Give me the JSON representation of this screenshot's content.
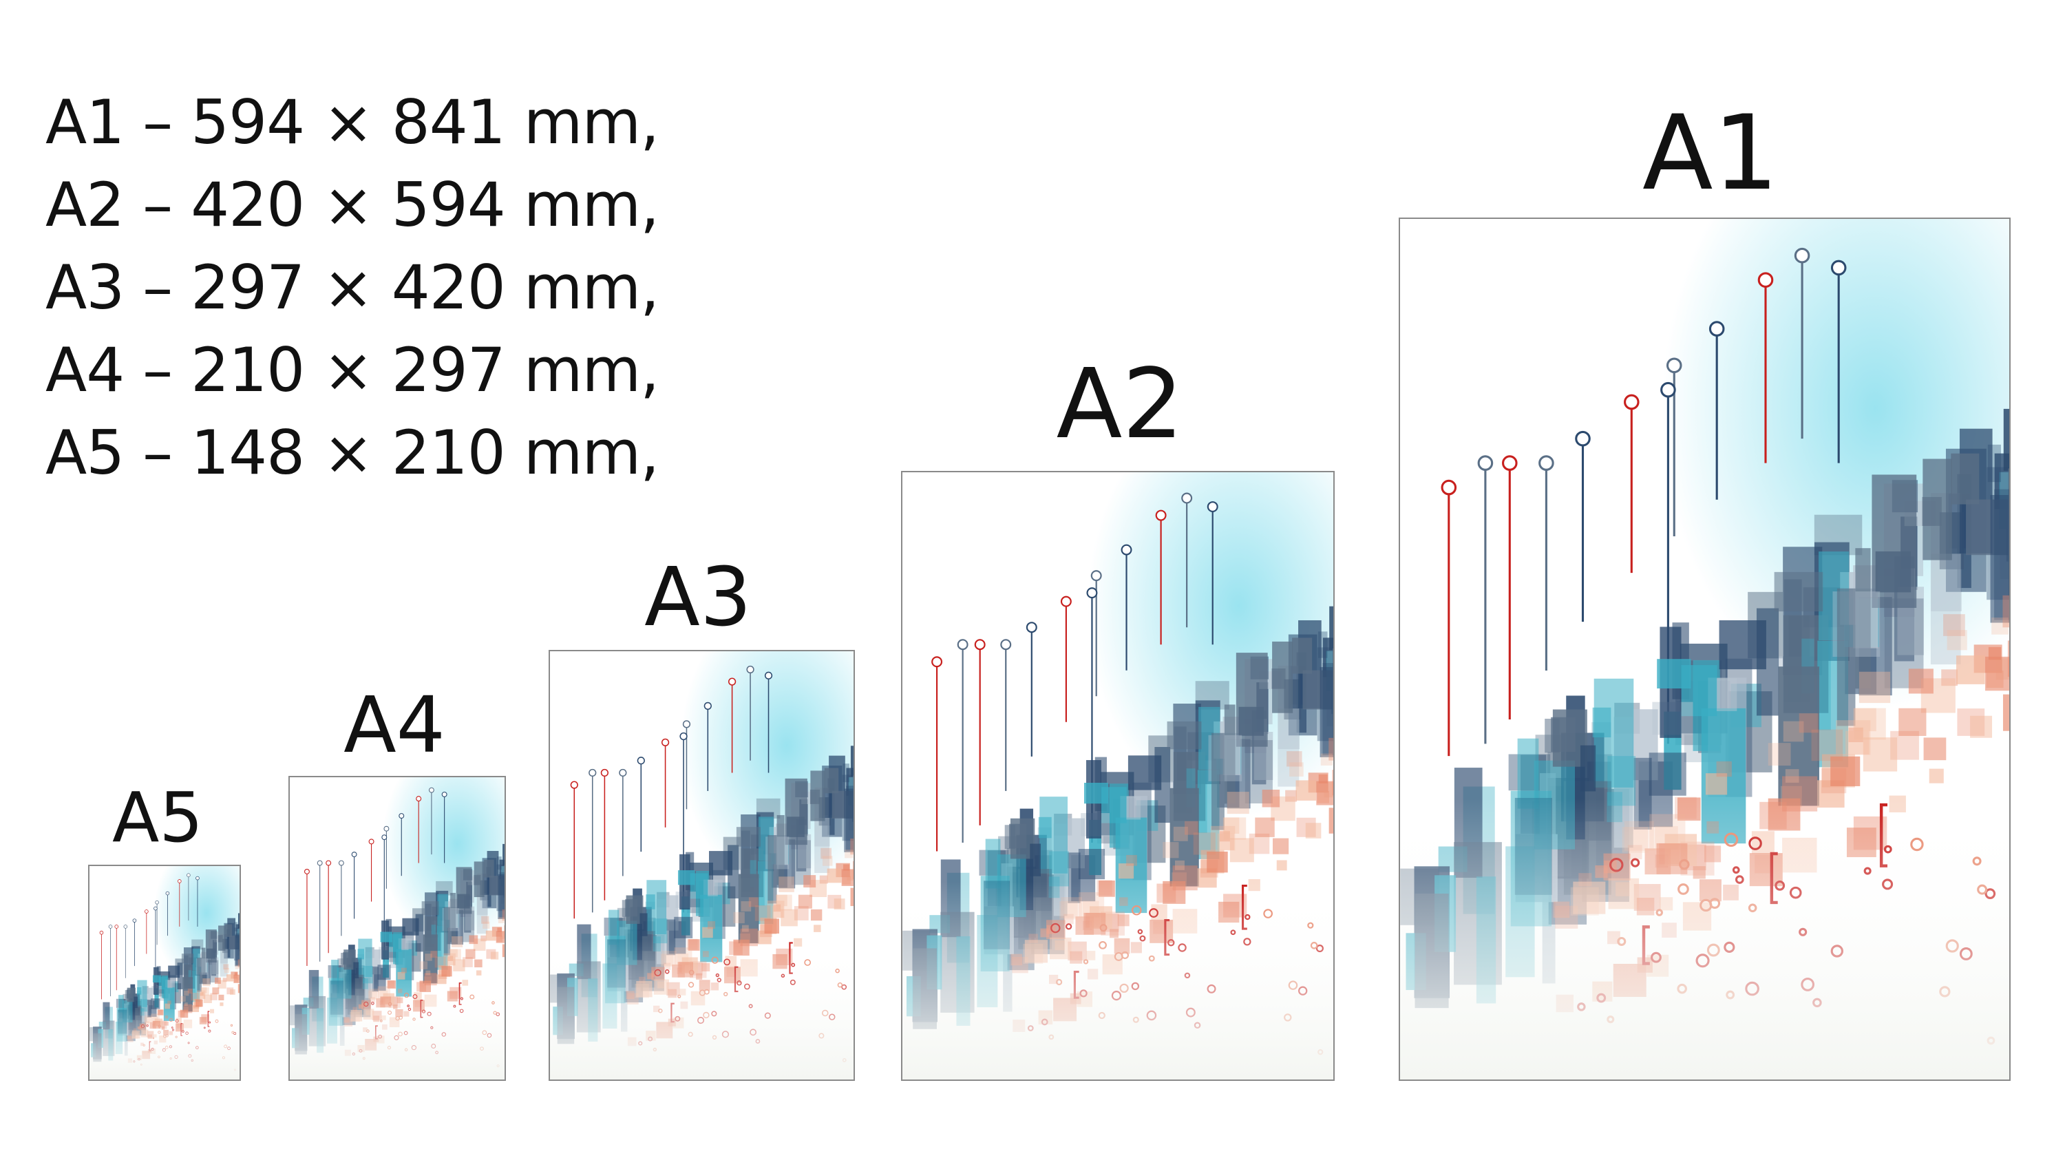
{
  "specs": [
    "A1 – 594 × 841 mm,",
    "A2 – 420 × 594 mm,",
    "A3 – 297 × 420 mm,",
    "A4 – 210 × 297 mm,",
    "A5 – 148 × 210 mm,"
  ],
  "posters": {
    "a5": {
      "label": "A5"
    },
    "a4": {
      "label": "A4"
    },
    "a3": {
      "label": "A3"
    },
    "a2": {
      "label": "A2"
    },
    "a1": {
      "label": "A1"
    }
  },
  "colors": {
    "teal": "#3aaec4",
    "navy": "#2c4a6e",
    "slate": "#5a6f86",
    "coral": "#e8876a",
    "red": "#c8201e",
    "peach": "#f3b89b",
    "cyan_glow": "#8fe0ee"
  },
  "artwork_name": "abstract-data-city-artwork"
}
